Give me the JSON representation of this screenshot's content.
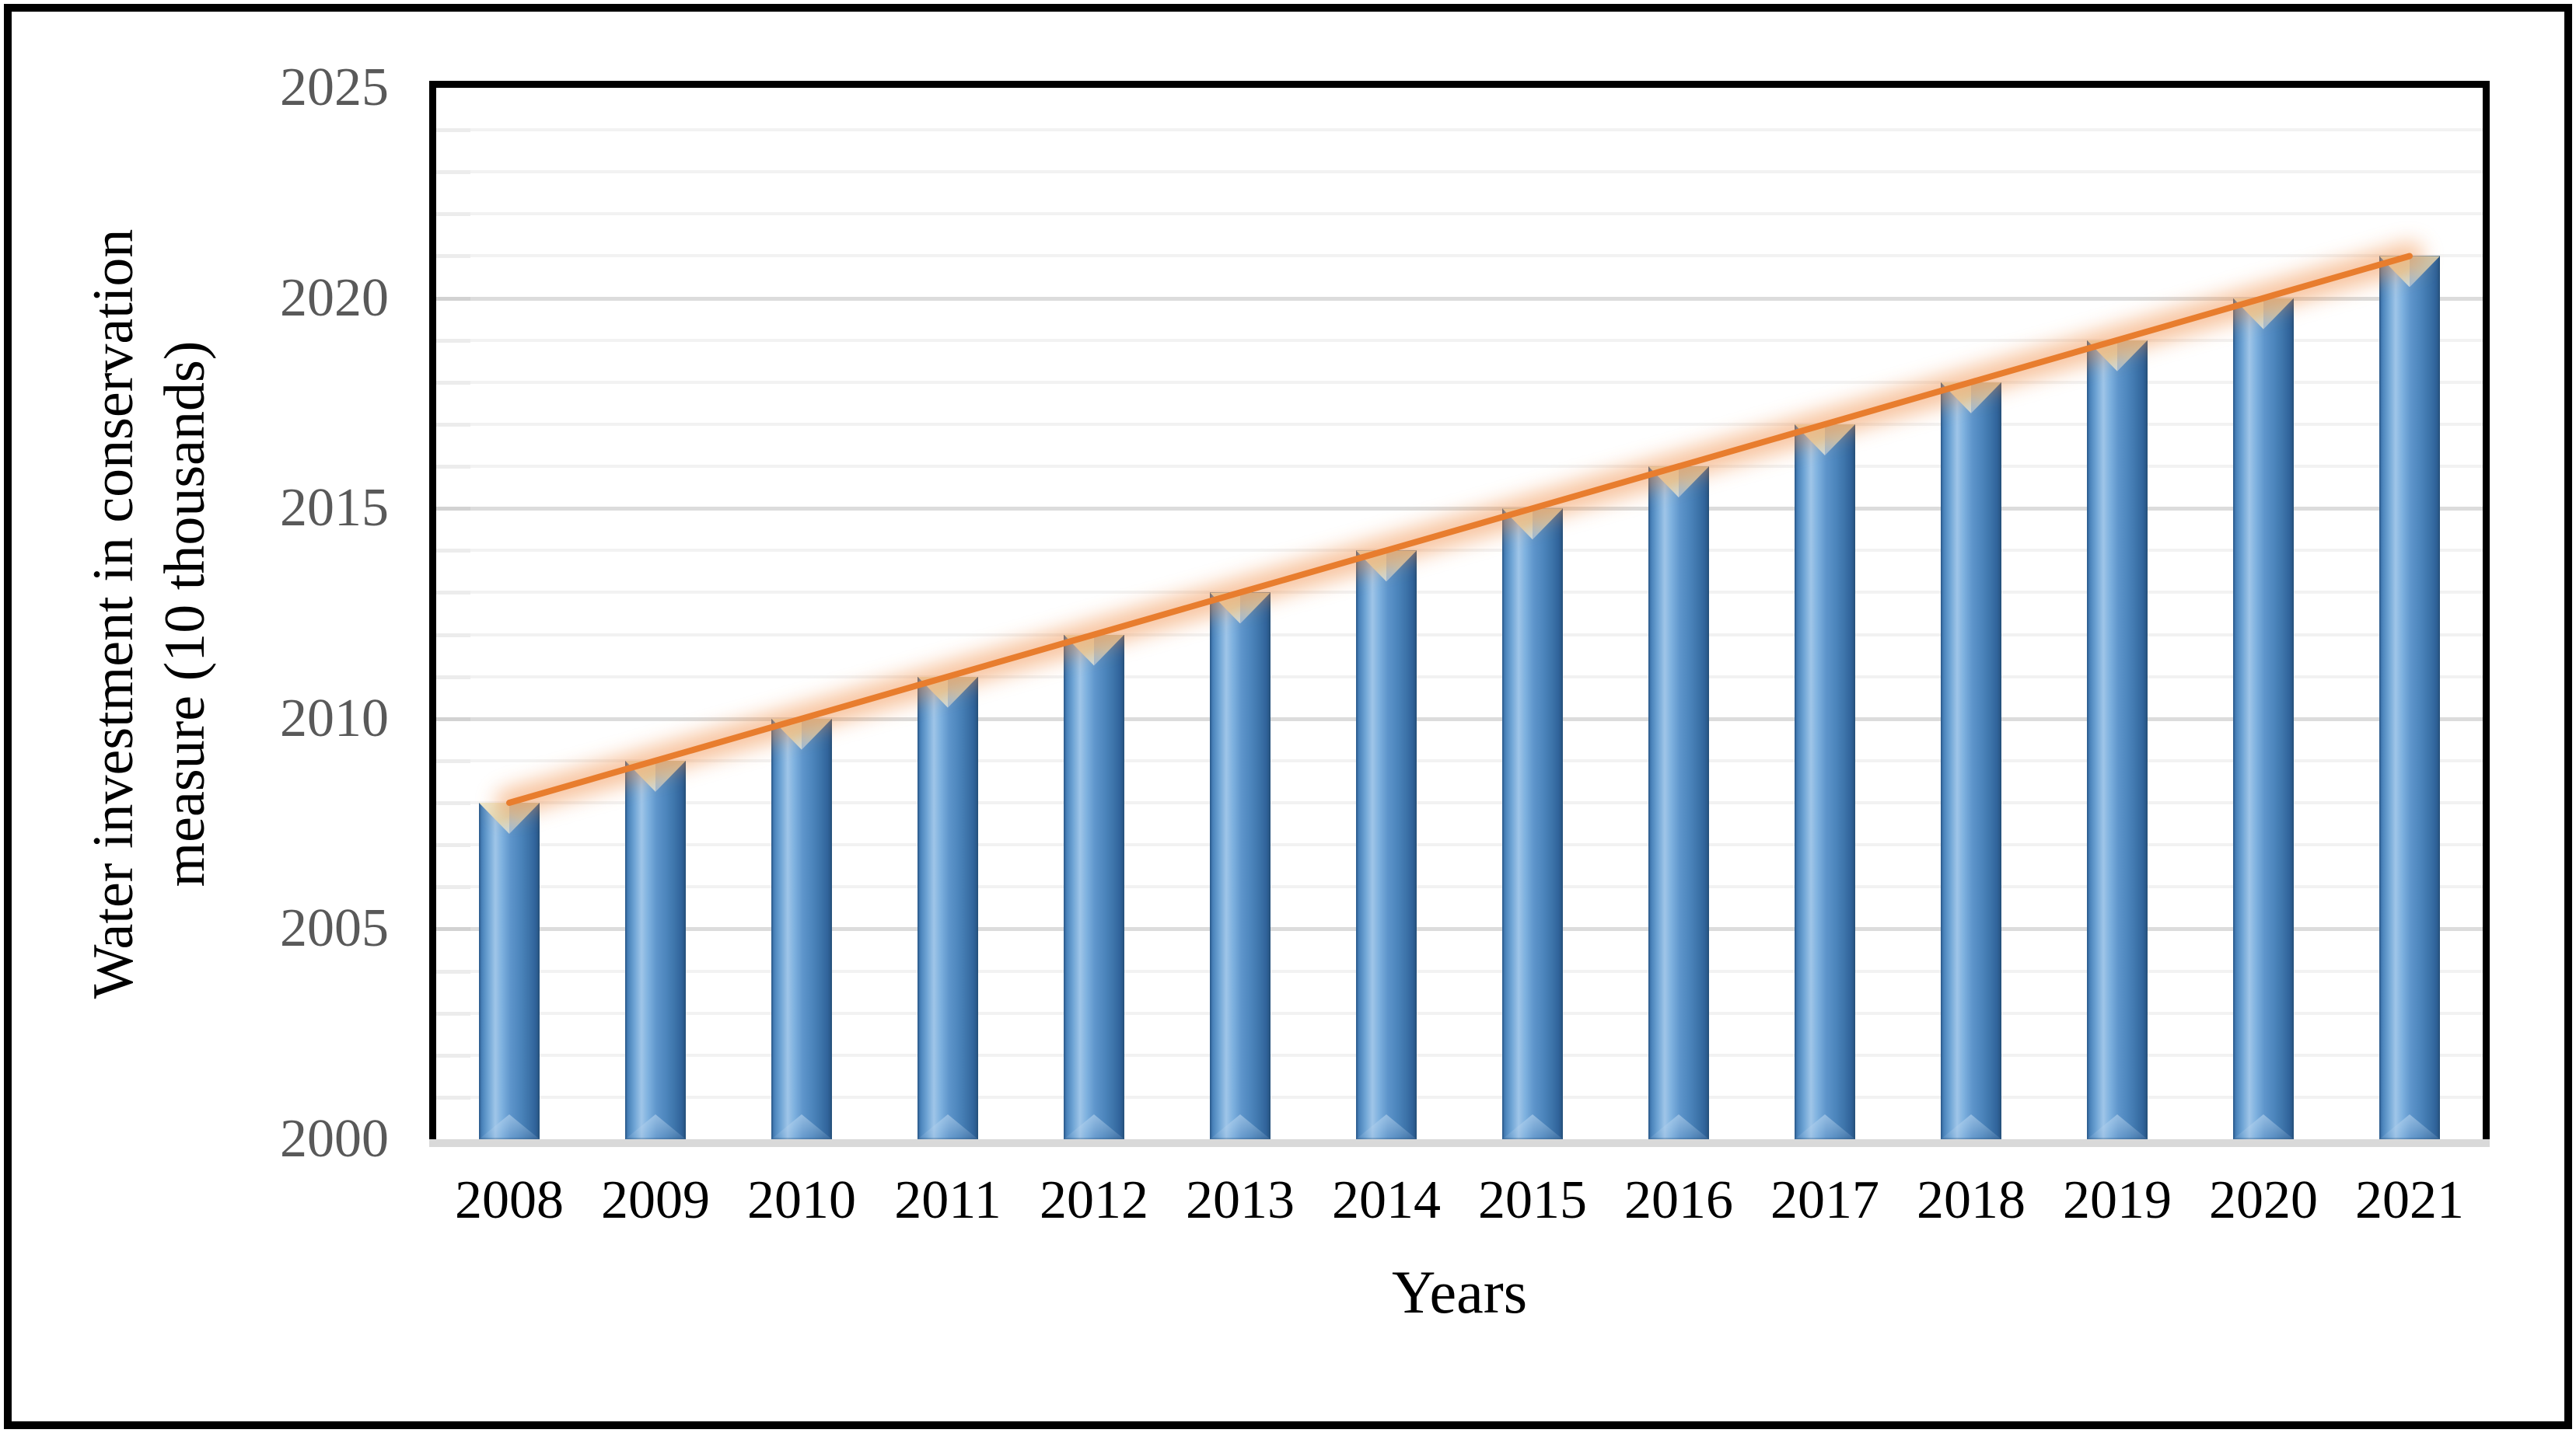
{
  "figure": {
    "background": "#ffffff",
    "border_color": "#000000"
  },
  "y_axis": {
    "title_line1": "Water investment in conservation",
    "title_line2": "measure (10 thousands)",
    "tick_labels": [
      "2000",
      "2005",
      "2010",
      "2015",
      "2020",
      "2025"
    ],
    "tick_color": "#595959"
  },
  "x_axis": {
    "title": "Years",
    "tick_labels": [
      "2008",
      "2009",
      "2010",
      "2011",
      "2012",
      "2013",
      "2014",
      "2015",
      "2016",
      "2017",
      "2018",
      "2019",
      "2020",
      "2021"
    ],
    "tick_color": "#000000"
  },
  "chart_data": {
    "type": "bar",
    "title": "",
    "categories": [
      "2008",
      "2009",
      "2010",
      "2011",
      "2012",
      "2013",
      "2014",
      "2015",
      "2016",
      "2017",
      "2018",
      "2019",
      "2020",
      "2021"
    ],
    "series": [
      {
        "name": "Water investment in conservation measure",
        "type": "bar",
        "values": [
          2008,
          2009,
          2010,
          2011,
          2012,
          2013,
          2014,
          2015,
          2016,
          2017,
          2018,
          2019,
          2020,
          2021
        ]
      },
      {
        "name": "Trend line",
        "type": "line",
        "values": [
          2008,
          2009,
          2010,
          2011,
          2012,
          2013,
          2014,
          2015,
          2016,
          2017,
          2018,
          2019,
          2020,
          2021
        ]
      }
    ],
    "xlabel": "Years",
    "ylabel": "Water investment in conservation measure (10 thousands)",
    "ylim": [
      2000,
      2025
    ],
    "yticks": [
      2000,
      2005,
      2010,
      2015,
      2020,
      2025
    ],
    "minor_grid_step": 1,
    "major_grid_step": 5,
    "grid": true,
    "legend": "none",
    "bar_color": "#5B9BD5",
    "bar_edge_color": "#2E5F93",
    "line_color": "#E87D2E",
    "line_glow_color": "#F0883C"
  }
}
